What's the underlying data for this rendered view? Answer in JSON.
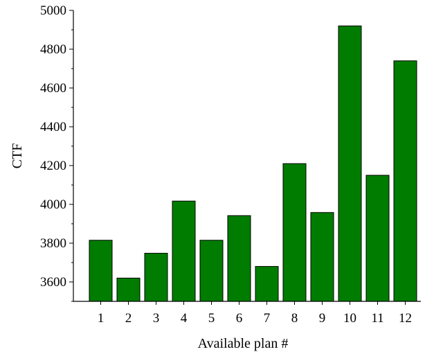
{
  "chart_data": {
    "type": "bar",
    "title": "",
    "xlabel": "Available plan #",
    "ylabel": "CTF",
    "categories": [
      "1",
      "2",
      "3",
      "4",
      "5",
      "6",
      "7",
      "8",
      "9",
      "10",
      "11",
      "12"
    ],
    "values": [
      3815,
      3620,
      3748,
      4017,
      3815,
      3942,
      3680,
      4210,
      3958,
      4920,
      4150,
      4740
    ],
    "ylim": [
      3500,
      5000
    ],
    "yticks": [
      "3600",
      "3800",
      "4000",
      "4200",
      "4400",
      "4600",
      "4800",
      "5000"
    ],
    "grid": false,
    "legend": "none"
  },
  "colors": {
    "bar_fill": "#007c00",
    "bar_stroke": "#000000",
    "axis": "#000000"
  }
}
